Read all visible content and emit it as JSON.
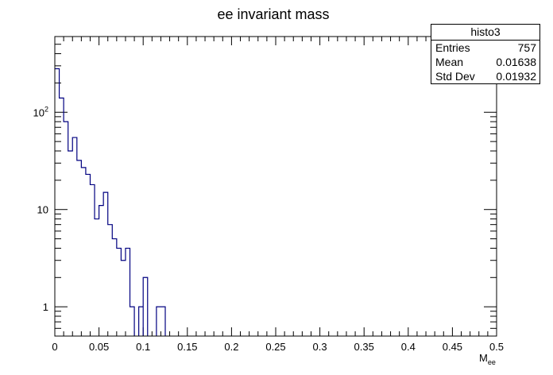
{
  "chart_data": {
    "type": "histogram",
    "title": "ee invariant mass",
    "xlabel": "M",
    "xlabel_subscript": "ee",
    "ylabel": "",
    "xlim": [
      0,
      0.5
    ],
    "ylim": [
      0.5,
      600
    ],
    "yscale": "log",
    "grid": false,
    "line_color": "#000080",
    "x_ticks": [
      "0",
      "0.05",
      "0.1",
      "0.15",
      "0.2",
      "0.25",
      "0.3",
      "0.35",
      "0.4",
      "0.45",
      "0.5"
    ],
    "y_ticks": [
      {
        "base": "10",
        "exp": "2",
        "value": 100
      },
      {
        "base": "10",
        "exp": "",
        "value": 10
      },
      {
        "base": "1",
        "exp": "",
        "value": 1
      }
    ],
    "bin_width": 0.005,
    "bins": [
      {
        "x0": 0.0,
        "count": 280
      },
      {
        "x0": 0.005,
        "count": 140
      },
      {
        "x0": 0.01,
        "count": 80
      },
      {
        "x0": 0.015,
        "count": 40
      },
      {
        "x0": 0.02,
        "count": 55
      },
      {
        "x0": 0.025,
        "count": 32
      },
      {
        "x0": 0.03,
        "count": 27
      },
      {
        "x0": 0.035,
        "count": 23
      },
      {
        "x0": 0.04,
        "count": 18
      },
      {
        "x0": 0.045,
        "count": 8
      },
      {
        "x0": 0.05,
        "count": 11
      },
      {
        "x0": 0.055,
        "count": 15
      },
      {
        "x0": 0.06,
        "count": 7
      },
      {
        "x0": 0.065,
        "count": 5
      },
      {
        "x0": 0.07,
        "count": 4
      },
      {
        "x0": 0.075,
        "count": 3
      },
      {
        "x0": 0.08,
        "count": 4
      },
      {
        "x0": 0.085,
        "count": 1
      },
      {
        "x0": 0.09,
        "count": 0
      },
      {
        "x0": 0.095,
        "count": 0
      },
      {
        "x0": 0.1,
        "count": 0
      },
      {
        "x0": 0.105,
        "count": 0
      },
      {
        "x0": 0.11,
        "count": 0
      },
      {
        "x0": 0.115,
        "count": 0
      },
      {
        "x0": 0.12,
        "count": 0
      }
    ],
    "x_drawn_points": [
      {
        "x": 0.09,
        "count": 0.9
      },
      {
        "x": 0.095,
        "count": 0.9
      },
      {
        "x": 0.1,
        "count": 2
      },
      {
        "x": 0.105,
        "count": 0.9
      },
      {
        "x": 0.11,
        "count": 0.9
      },
      {
        "x": 0.115,
        "count": 1
      },
      {
        "x": 0.125,
        "count": 1
      }
    ]
  },
  "stats": {
    "title": "histo3",
    "rows": [
      {
        "key": "Entries",
        "value": "757"
      },
      {
        "key": "Mean",
        "value": "0.01638"
      },
      {
        "key": "Std Dev",
        "value": "0.01932"
      }
    ]
  }
}
